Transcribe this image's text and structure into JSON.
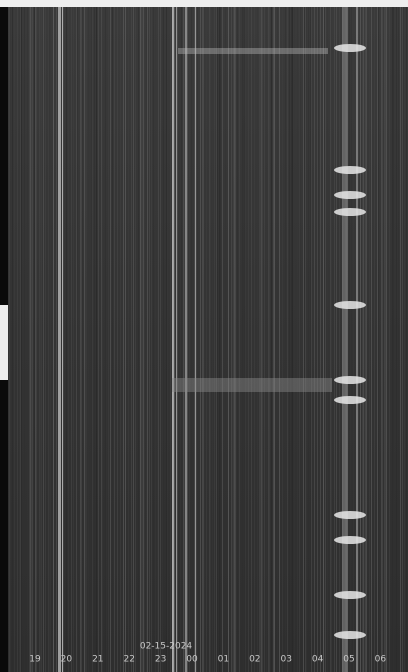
{
  "date": "02-15-2024",
  "hour_labels": [
    "19",
    "20",
    "21",
    "22",
    "23",
    "00",
    "01",
    "02",
    "03",
    "04",
    "05",
    "06"
  ]
}
